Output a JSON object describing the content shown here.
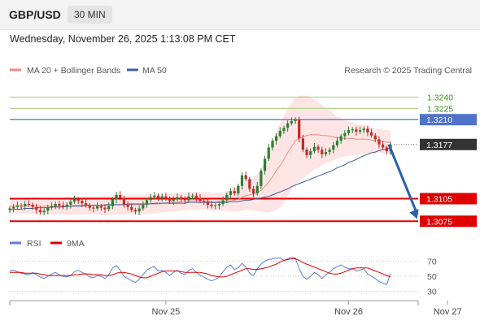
{
  "header": {
    "symbol": "GBP/USD",
    "timeframe": "30 MIN",
    "timestamp": "Wednesday, November 26, 2025 1:13:08 PM CET"
  },
  "colors": {
    "bull": "#2e7d32",
    "bear": "#c62828",
    "ma20": "#f28b82",
    "band_fill": "#fde0e0",
    "ma50": "#3f5f9a",
    "resistance_line": "#4f73c9",
    "target_line": "#e00000",
    "green_line": "#a5cc7a",
    "arrow": "#2a5faa",
    "rsi": "#5b7fd6",
    "rsi_ma": "#e00000"
  },
  "chart_data": [
    {
      "type": "candlestick",
      "legend": [
        {
          "name": "MA 20 + Bollinger Bands",
          "color": "#f28b82"
        },
        {
          "name": "MA 50",
          "color": "#3f5f9a"
        }
      ],
      "attribution": "Research © 2025 Trading Central",
      "ylim": [
        1.3071,
        1.3261
      ],
      "x_ticks": [
        {
          "label": "Nov 25",
          "index": 41
        },
        {
          "label": "Nov 26",
          "index": 89
        },
        {
          "label": "Nov 27",
          "index": 115
        }
      ],
      "levels": [
        {
          "value": 1.324,
          "label": "1.3240",
          "kind": "green"
        },
        {
          "value": 1.3225,
          "label": "1.3225",
          "kind": "green"
        },
        {
          "value": 1.321,
          "label": "1.3210",
          "kind": "resistance"
        },
        {
          "value": 1.3177,
          "label": "1.3177",
          "kind": "last"
        },
        {
          "value": 1.3105,
          "label": "1.3105",
          "kind": "target"
        },
        {
          "value": 1.3075,
          "label": "1.3075",
          "kind": "target"
        }
      ],
      "forecast_arrow": {
        "from": {
          "index": 100,
          "value": 1.3177
        },
        "to": {
          "index": 107,
          "value": 1.3078
        }
      },
      "closes": [
        1.3092,
        1.3094,
        1.3096,
        1.3095,
        1.3098,
        1.3097,
        1.3094,
        1.309,
        1.3087,
        1.3089,
        1.3093,
        1.3095,
        1.3098,
        1.3096,
        1.3094,
        1.3097,
        1.3101,
        1.3104,
        1.3102,
        1.3099,
        1.3096,
        1.3093,
        1.3092,
        1.3095,
        1.3093,
        1.3091,
        1.3095,
        1.3104,
        1.311,
        1.3106,
        1.3097,
        1.3094,
        1.309,
        1.3088,
        1.3092,
        1.3097,
        1.3103,
        1.3107,
        1.3109,
        1.3106,
        1.3108,
        1.3105,
        1.3102,
        1.3104,
        1.3107,
        1.3104,
        1.3103,
        1.3108,
        1.3109,
        1.3106,
        1.3102,
        1.3101,
        1.3097,
        1.3095,
        1.3096,
        1.3098,
        1.3103,
        1.311,
        1.3115,
        1.3112,
        1.3122,
        1.3136,
        1.3131,
        1.3118,
        1.3112,
        1.3122,
        1.3142,
        1.3158,
        1.3173,
        1.3182,
        1.3188,
        1.3195,
        1.3199,
        1.3205,
        1.3208,
        1.321,
        1.3185,
        1.317,
        1.3163,
        1.3168,
        1.3174,
        1.317,
        1.3164,
        1.3167,
        1.317,
        1.3176,
        1.3182,
        1.3188,
        1.3192,
        1.3196,
        1.3197,
        1.3194,
        1.3196,
        1.3198,
        1.3193,
        1.3189,
        1.3184,
        1.3177,
        1.3173,
        1.3168,
        1.3177
      ],
      "ma20": [
        1.3095,
        1.3095,
        1.3095,
        1.3095,
        1.3095,
        1.3096,
        1.3096,
        1.3096,
        1.3095,
        1.3095,
        1.3095,
        1.3095,
        1.3095,
        1.3095,
        1.3095,
        1.3095,
        1.3095,
        1.3096,
        1.3096,
        1.3096,
        1.3096,
        1.3096,
        1.3096,
        1.3096,
        1.3096,
        1.3096,
        1.3096,
        1.3097,
        1.3097,
        1.3097,
        1.3097,
        1.3097,
        1.3097,
        1.3097,
        1.3097,
        1.3097,
        1.3098,
        1.3098,
        1.3098,
        1.3098,
        1.3099,
        1.3099,
        1.31,
        1.31,
        1.31,
        1.3101,
        1.3101,
        1.3102,
        1.3102,
        1.3102,
        1.3102,
        1.3102,
        1.3102,
        1.3101,
        1.3101,
        1.3101,
        1.3101,
        1.3102,
        1.3102,
        1.3103,
        1.3104,
        1.3107,
        1.3109,
        1.311,
        1.3111,
        1.3113,
        1.3116,
        1.3121,
        1.3127,
        1.3134,
        1.3142,
        1.3149,
        1.3157,
        1.3166,
        1.3174,
        1.3182,
        1.3185,
        1.3187,
        1.3189,
        1.319,
        1.319,
        1.319,
        1.3189,
        1.3189,
        1.3188,
        1.3187,
        1.3186,
        1.3186,
        1.3185,
        1.3185,
        1.3185,
        1.3184,
        1.3184,
        1.3184,
        1.3184,
        1.3183,
        1.3182,
        1.3182,
        1.3181,
        1.318,
        1.318
      ],
      "ma50": [
        1.309,
        1.3091,
        1.3091,
        1.3091,
        1.3092,
        1.3092,
        1.3092,
        1.3093,
        1.3093,
        1.3093,
        1.3093,
        1.3094,
        1.3094,
        1.3094,
        1.3094,
        1.3095,
        1.3095,
        1.3095,
        1.3095,
        1.3095,
        1.3096,
        1.3096,
        1.3096,
        1.3096,
        1.3096,
        1.3097,
        1.3097,
        1.3097,
        1.3097,
        1.3097,
        1.3097,
        1.3098,
        1.3098,
        1.3098,
        1.3098,
        1.3098,
        1.3098,
        1.3098,
        1.3099,
        1.3099,
        1.3099,
        1.3099,
        1.3099,
        1.3099,
        1.3099,
        1.3099,
        1.3099,
        1.31,
        1.31,
        1.31,
        1.31,
        1.31,
        1.31,
        1.31,
        1.31,
        1.31,
        1.31,
        1.31,
        1.3101,
        1.3101,
        1.3101,
        1.3102,
        1.3103,
        1.3103,
        1.3104,
        1.3105,
        1.3106,
        1.3107,
        1.3108,
        1.311,
        1.3112,
        1.3114,
        1.3116,
        1.3118,
        1.3121,
        1.3123,
        1.3125,
        1.3127,
        1.3129,
        1.3131,
        1.3133,
        1.3135,
        1.3137,
        1.3139,
        1.3141,
        1.3143,
        1.3146,
        1.3148,
        1.315,
        1.3153,
        1.3155,
        1.3157,
        1.316,
        1.3162,
        1.3164,
        1.3166,
        1.3167,
        1.3169,
        1.317,
        1.3171,
        1.3173
      ],
      "band_width": [
        0.001,
        0.001,
        0.001,
        0.001,
        0.001,
        0.001,
        0.0011,
        0.0011,
        0.0011,
        0.0011,
        0.0011,
        0.0011,
        0.0011,
        0.0011,
        0.0011,
        0.0012,
        0.0012,
        0.0012,
        0.0012,
        0.0012,
        0.0012,
        0.0012,
        0.0012,
        0.0012,
        0.0013,
        0.0013,
        0.0013,
        0.0013,
        0.0013,
        0.0013,
        0.0013,
        0.0013,
        0.0013,
        0.0013,
        0.0013,
        0.0013,
        0.0013,
        0.0013,
        0.0013,
        0.0012,
        0.0012,
        0.0012,
        0.0012,
        0.0012,
        0.0012,
        0.0012,
        0.0012,
        0.0012,
        0.0012,
        0.0012,
        0.0012,
        0.0012,
        0.0012,
        0.0012,
        0.0012,
        0.0012,
        0.0012,
        0.0013,
        0.0014,
        0.0015,
        0.0016,
        0.0018,
        0.0019,
        0.002,
        0.0022,
        0.0024,
        0.0028,
        0.0034,
        0.004,
        0.0046,
        0.0052,
        0.0056,
        0.0058,
        0.0058,
        0.0058,
        0.0058,
        0.0057,
        0.0055,
        0.0053,
        0.005,
        0.0047,
        0.0044,
        0.004,
        0.0037,
        0.0034,
        0.0031,
        0.0028,
        0.0026,
        0.0024,
        0.0023,
        0.0022,
        0.0021,
        0.002,
        0.0019,
        0.0018,
        0.0017,
        0.0016,
        0.0016,
        0.0016,
        0.0016,
        0.0016
      ]
    },
    {
      "type": "line",
      "legend": [
        {
          "name": "RSI",
          "color": "#5b7fd6"
        },
        {
          "name": "9MA",
          "color": "#e00000"
        }
      ],
      "ylim": [
        20,
        80
      ],
      "y_ticks": [
        70,
        50,
        30
      ],
      "rsi": [
        57,
        58,
        56,
        54,
        53,
        52,
        55,
        52,
        49,
        47,
        50,
        53,
        55,
        52,
        50,
        49,
        51,
        56,
        58,
        55,
        53,
        49,
        48,
        51,
        50,
        47,
        52,
        61,
        64,
        58,
        50,
        47,
        44,
        42,
        46,
        52,
        58,
        61,
        63,
        57,
        58,
        55,
        51,
        55,
        58,
        54,
        52,
        58,
        60,
        55,
        51,
        49,
        46,
        44,
        46,
        49,
        56,
        62,
        65,
        59,
        61,
        67,
        62,
        54,
        51,
        60,
        66,
        70,
        72,
        73,
        74,
        74,
        71,
        73,
        75,
        74,
        60,
        50,
        46,
        50,
        55,
        52,
        47,
        52,
        55,
        60,
        63,
        65,
        62,
        60,
        60,
        57,
        58,
        60,
        53,
        50,
        47,
        43,
        41,
        39,
        54
      ],
      "rsi_ma": [
        55,
        55,
        55,
        55,
        54,
        54,
        54,
        54,
        53,
        52,
        51,
        51,
        51,
        51,
        51,
        51,
        51,
        52,
        52,
        53,
        53,
        53,
        52,
        52,
        52,
        51,
        51,
        52,
        54,
        55,
        55,
        54,
        53,
        51,
        49,
        48,
        48,
        50,
        52,
        54,
        56,
        57,
        57,
        57,
        57,
        56,
        55,
        55,
        55,
        55,
        55,
        54,
        53,
        51,
        50,
        49,
        49,
        50,
        52,
        54,
        56,
        58,
        60,
        60,
        59,
        59,
        60,
        61,
        62,
        64,
        66,
        69,
        71,
        72,
        73,
        73,
        71,
        68,
        66,
        64,
        62,
        60,
        58,
        56,
        54,
        53,
        53,
        54,
        56,
        58,
        60,
        61,
        61,
        61,
        61,
        59,
        57,
        55,
        53,
        51,
        49
      ]
    }
  ]
}
